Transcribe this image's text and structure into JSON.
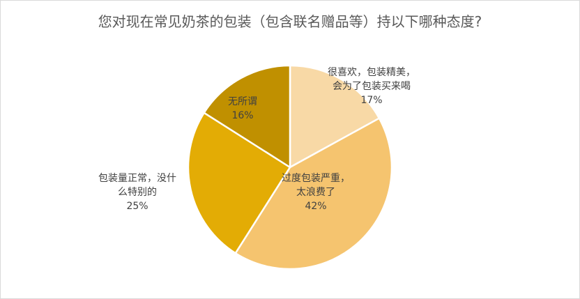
{
  "chart_data": {
    "type": "pie",
    "title": "您对现在常见奶茶的包装（包含联名赠品等）持以下哪种态度?",
    "slices": [
      {
        "label_lines": [
          "很喜欢，包装精美，",
          "会为了包装买来喝"
        ],
        "percent_label": "17%",
        "value": 17,
        "color": "#f8d9a6"
      },
      {
        "label_lines": [
          "过度包装严重，",
          "太浪费了"
        ],
        "percent_label": "42%",
        "value": 42,
        "color": "#f5c46f"
      },
      {
        "label_lines": [
          "包装量正常，没什",
          "么特别的"
        ],
        "percent_label": "25%",
        "value": 25,
        "color": "#e3ac05"
      },
      {
        "label_lines": [
          "无所谓"
        ],
        "percent_label": "16%",
        "value": 16,
        "color": "#c09000"
      }
    ],
    "start_angle": "12 o'clock",
    "direction": "clockwise",
    "legend": "none"
  }
}
